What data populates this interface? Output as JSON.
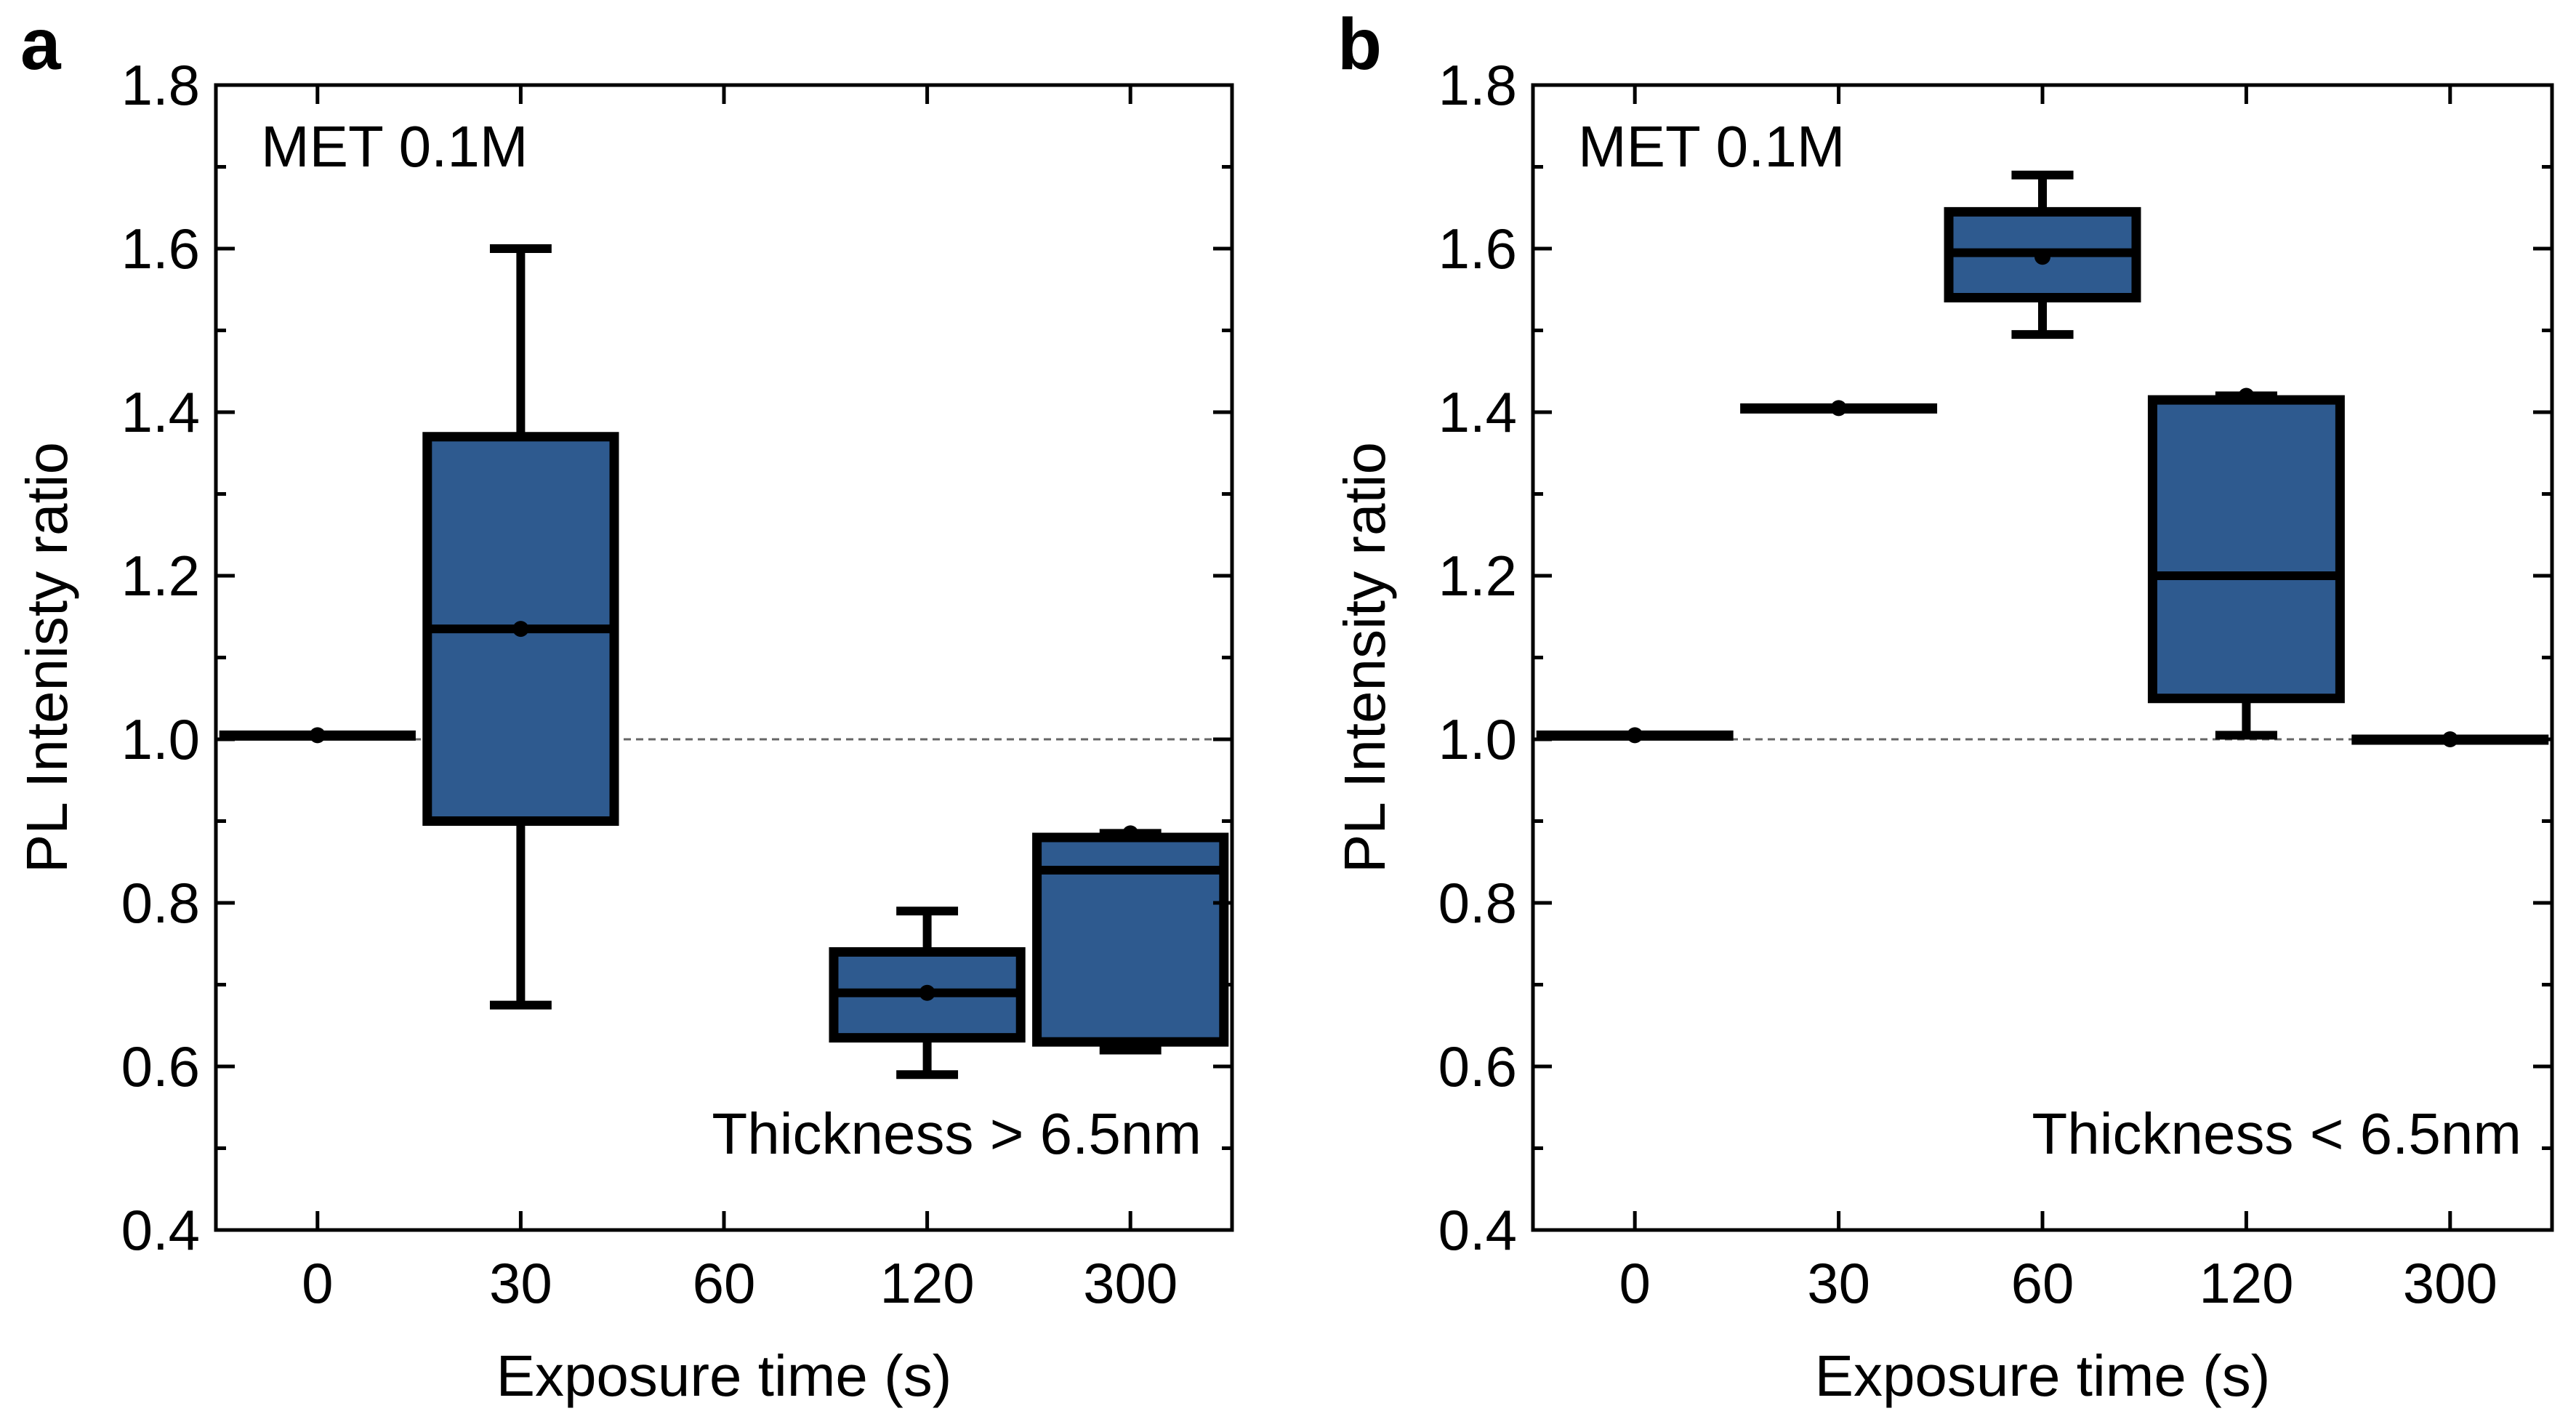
{
  "figure": {
    "colors": {
      "box_fill": "#2e5a8f",
      "stroke": "#000000",
      "refline": "#666666"
    }
  },
  "chart_data": [
    {
      "type": "box",
      "panel": "a",
      "categories": [
        "0",
        "30",
        "60",
        "120",
        "300"
      ],
      "xlabel": "Exposure time (s)",
      "ylabel": "PL Intenisty ratio",
      "ylim": [
        0.4,
        1.8
      ],
      "yticks": [
        "0.4",
        "0.6",
        "0.8",
        "1.0",
        "1.2",
        "1.4",
        "1.6",
        "1.8"
      ],
      "reference_line": 1.0,
      "annotations": {
        "top_left": "MET 0.1M",
        "bottom_right": "Thickness > 6.5nm"
      },
      "boxes": [
        {
          "category": "0",
          "min": 1.005,
          "q1": 1.005,
          "median": 1.005,
          "q3": 1.005,
          "max": 1.005,
          "mean": 1.005
        },
        {
          "category": "30",
          "min": 0.675,
          "q1": 0.9,
          "median": 1.135,
          "q3": 1.37,
          "max": 1.6,
          "mean": 1.135
        },
        {
          "category": "120",
          "min": 0.59,
          "q1": 0.635,
          "median": 0.69,
          "q3": 0.74,
          "max": 0.79,
          "mean": 0.69
        },
        {
          "category": "300",
          "min": 0.62,
          "q1": 0.63,
          "median": 0.84,
          "q3": 0.88,
          "max": 0.885,
          "mean": 0.885
        }
      ]
    },
    {
      "type": "box",
      "panel": "b",
      "categories": [
        "0",
        "30",
        "60",
        "120",
        "300"
      ],
      "xlabel": "Exposure time (s)",
      "ylabel": "PL Intensity ratio",
      "ylim": [
        0.4,
        1.8
      ],
      "yticks": [
        "0.4",
        "0.6",
        "0.8",
        "1.0",
        "1.2",
        "1.4",
        "1.6",
        "1.8"
      ],
      "reference_line": 1.0,
      "annotations": {
        "top_left": "MET 0.1M",
        "bottom_right": "Thickness < 6.5nm"
      },
      "boxes": [
        {
          "category": "0",
          "min": 1.005,
          "q1": 1.005,
          "median": 1.005,
          "q3": 1.005,
          "max": 1.005,
          "mean": 1.005
        },
        {
          "category": "30",
          "min": 1.405,
          "q1": 1.405,
          "median": 1.405,
          "q3": 1.405,
          "max": 1.405,
          "mean": 1.405
        },
        {
          "category": "60",
          "min": 1.495,
          "q1": 1.54,
          "median": 1.595,
          "q3": 1.645,
          "max": 1.69,
          "mean": 1.59
        },
        {
          "category": "120",
          "min": 1.005,
          "q1": 1.05,
          "median": 1.2,
          "q3": 1.415,
          "max": 1.42,
          "mean": 1.42
        },
        {
          "category": "300",
          "min": 1.0,
          "q1": 1.0,
          "median": 1.0,
          "q3": 1.0,
          "max": 1.0,
          "mean": 1.0
        }
      ]
    }
  ]
}
